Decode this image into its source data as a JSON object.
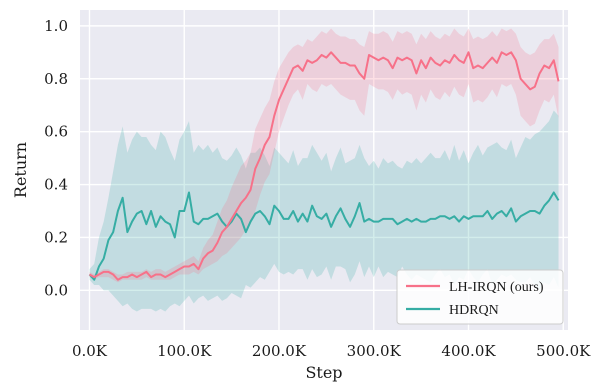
{
  "chart_data": {
    "type": "line",
    "xlabel": "Step",
    "ylabel": "Return",
    "xlim": [
      -10000,
      505000
    ],
    "ylim": [
      -0.15,
      1.06
    ],
    "x_ticks": [
      0,
      100000,
      200000,
      300000,
      400000,
      500000
    ],
    "x_tick_labels": [
      "0.0K",
      "100.0K",
      "200.0K",
      "300.0K",
      "400.0K",
      "500.0K"
    ],
    "y_ticks": [
      0.0,
      0.2,
      0.4,
      0.6,
      0.8,
      1.0
    ],
    "y_tick_labels": [
      "0.0",
      "0.2",
      "0.4",
      "0.6",
      "0.8",
      "1.0"
    ],
    "grid": true,
    "legend_position": "bottom-right",
    "x": [
      0,
      5000,
      10000,
      15000,
      20000,
      25000,
      30000,
      35000,
      40000,
      45000,
      50000,
      55000,
      60000,
      65000,
      70000,
      75000,
      80000,
      85000,
      90000,
      95000,
      100000,
      105000,
      110000,
      115000,
      120000,
      125000,
      130000,
      135000,
      140000,
      145000,
      150000,
      155000,
      160000,
      165000,
      170000,
      175000,
      180000,
      185000,
      190000,
      195000,
      200000,
      205000,
      210000,
      215000,
      220000,
      225000,
      230000,
      235000,
      240000,
      245000,
      250000,
      255000,
      260000,
      265000,
      270000,
      275000,
      280000,
      285000,
      290000,
      295000,
      300000,
      305000,
      310000,
      315000,
      320000,
      325000,
      330000,
      335000,
      340000,
      345000,
      350000,
      355000,
      360000,
      365000,
      370000,
      375000,
      380000,
      385000,
      390000,
      395000,
      400000,
      405000,
      410000,
      415000,
      420000,
      425000,
      430000,
      435000,
      440000,
      445000,
      450000,
      455000,
      460000,
      465000,
      470000,
      475000,
      480000,
      485000,
      490000,
      495000
    ],
    "series": [
      {
        "name": "LH-IRQN (ours)",
        "color": "#f77189",
        "mean": [
          0.06,
          0.05,
          0.06,
          0.07,
          0.07,
          0.06,
          0.04,
          0.05,
          0.05,
          0.06,
          0.05,
          0.06,
          0.07,
          0.05,
          0.06,
          0.06,
          0.05,
          0.06,
          0.07,
          0.08,
          0.09,
          0.09,
          0.1,
          0.08,
          0.12,
          0.14,
          0.15,
          0.18,
          0.22,
          0.24,
          0.27,
          0.3,
          0.33,
          0.35,
          0.38,
          0.46,
          0.5,
          0.55,
          0.58,
          0.66,
          0.72,
          0.76,
          0.8,
          0.84,
          0.85,
          0.83,
          0.87,
          0.86,
          0.87,
          0.89,
          0.88,
          0.9,
          0.88,
          0.86,
          0.86,
          0.85,
          0.85,
          0.82,
          0.8,
          0.89,
          0.88,
          0.87,
          0.88,
          0.87,
          0.84,
          0.88,
          0.87,
          0.88,
          0.87,
          0.82,
          0.87,
          0.84,
          0.88,
          0.86,
          0.85,
          0.87,
          0.86,
          0.89,
          0.87,
          0.86,
          0.9,
          0.84,
          0.85,
          0.84,
          0.86,
          0.88,
          0.86,
          0.9,
          0.89,
          0.9,
          0.87,
          0.8,
          0.78,
          0.76,
          0.77,
          0.82,
          0.85,
          0.84,
          0.87,
          0.79
        ],
        "lower": [
          0.05,
          0.04,
          0.05,
          0.05,
          0.05,
          0.04,
          0.03,
          0.04,
          0.04,
          0.04,
          0.04,
          0.04,
          0.05,
          0.04,
          0.04,
          0.04,
          0.04,
          0.04,
          0.05,
          0.06,
          0.06,
          0.06,
          0.07,
          0.06,
          0.08,
          0.09,
          0.1,
          0.11,
          0.13,
          0.14,
          0.16,
          0.18,
          0.2,
          0.23,
          0.25,
          0.3,
          0.36,
          0.41,
          0.44,
          0.52,
          0.6,
          0.65,
          0.7,
          0.74,
          0.76,
          0.72,
          0.78,
          0.76,
          0.75,
          0.78,
          0.77,
          0.78,
          0.76,
          0.74,
          0.73,
          0.72,
          0.72,
          0.68,
          0.66,
          0.78,
          0.77,
          0.76,
          0.76,
          0.75,
          0.72,
          0.76,
          0.74,
          0.75,
          0.74,
          0.68,
          0.74,
          0.71,
          0.76,
          0.73,
          0.72,
          0.75,
          0.73,
          0.77,
          0.74,
          0.73,
          0.78,
          0.71,
          0.72,
          0.71,
          0.73,
          0.76,
          0.73,
          0.78,
          0.77,
          0.78,
          0.74,
          0.66,
          0.64,
          0.62,
          0.63,
          0.68,
          0.72,
          0.71,
          0.74,
          0.65
        ],
        "upper": [
          0.07,
          0.06,
          0.07,
          0.08,
          0.08,
          0.07,
          0.06,
          0.06,
          0.07,
          0.07,
          0.07,
          0.07,
          0.08,
          0.07,
          0.08,
          0.08,
          0.07,
          0.08,
          0.09,
          0.1,
          0.11,
          0.12,
          0.13,
          0.11,
          0.16,
          0.19,
          0.21,
          0.26,
          0.31,
          0.34,
          0.39,
          0.43,
          0.47,
          0.49,
          0.52,
          0.61,
          0.65,
          0.69,
          0.72,
          0.79,
          0.84,
          0.87,
          0.9,
          0.92,
          0.93,
          0.92,
          0.95,
          0.94,
          0.96,
          0.98,
          0.97,
          0.99,
          0.97,
          0.96,
          0.96,
          0.95,
          0.95,
          0.93,
          0.92,
          0.98,
          0.97,
          0.97,
          0.98,
          0.97,
          0.94,
          0.98,
          0.97,
          0.98,
          0.97,
          0.93,
          0.97,
          0.95,
          0.98,
          0.96,
          0.95,
          0.97,
          0.96,
          0.99,
          0.97,
          0.96,
          0.99,
          0.95,
          0.96,
          0.95,
          0.96,
          0.98,
          0.96,
          0.99,
          0.98,
          0.99,
          0.97,
          0.92,
          0.9,
          0.89,
          0.9,
          0.93,
          0.95,
          0.95,
          0.97,
          0.92
        ]
      },
      {
        "name": "HDRQN",
        "color": "#36ada4",
        "mean": [
          0.06,
          0.04,
          0.09,
          0.12,
          0.19,
          0.22,
          0.3,
          0.35,
          0.22,
          0.26,
          0.29,
          0.3,
          0.25,
          0.3,
          0.24,
          0.28,
          0.26,
          0.25,
          0.2,
          0.3,
          0.3,
          0.37,
          0.26,
          0.25,
          0.27,
          0.27,
          0.28,
          0.29,
          0.26,
          0.24,
          0.26,
          0.29,
          0.27,
          0.22,
          0.26,
          0.29,
          0.3,
          0.28,
          0.25,
          0.32,
          0.3,
          0.27,
          0.27,
          0.3,
          0.26,
          0.29,
          0.26,
          0.32,
          0.28,
          0.27,
          0.29,
          0.24,
          0.28,
          0.31,
          0.27,
          0.24,
          0.28,
          0.33,
          0.26,
          0.27,
          0.26,
          0.26,
          0.27,
          0.27,
          0.27,
          0.25,
          0.26,
          0.27,
          0.26,
          0.27,
          0.26,
          0.26,
          0.27,
          0.27,
          0.28,
          0.28,
          0.27,
          0.28,
          0.26,
          0.28,
          0.27,
          0.28,
          0.28,
          0.28,
          0.3,
          0.27,
          0.29,
          0.3,
          0.28,
          0.31,
          0.26,
          0.28,
          0.29,
          0.3,
          0.3,
          0.29,
          0.32,
          0.34,
          0.37,
          0.34
        ],
        "lower": [
          0.04,
          0.02,
          0.02,
          0.0,
          0.0,
          -0.02,
          -0.04,
          -0.06,
          -0.05,
          -0.07,
          -0.08,
          -0.07,
          -0.07,
          -0.07,
          -0.08,
          -0.07,
          -0.08,
          -0.06,
          -0.05,
          -0.06,
          -0.04,
          -0.02,
          -0.05,
          -0.03,
          -0.02,
          -0.04,
          -0.03,
          -0.02,
          -0.04,
          -0.03,
          -0.01,
          -0.02,
          -0.03,
          0.02,
          0.01,
          0.03,
          0.05,
          0.04,
          0.07,
          0.1,
          0.07,
          0.06,
          0.07,
          0.06,
          0.08,
          0.08,
          0.04,
          0.08,
          0.05,
          0.06,
          0.09,
          0.04,
          0.09,
          0.09,
          0.08,
          0.03,
          0.06,
          0.11,
          0.05,
          0.09,
          0.05,
          0.09,
          0.05,
          0.07,
          0.06,
          0.05,
          0.09,
          0.06,
          0.04,
          0.06,
          0.05,
          0.04,
          0.03,
          0.06,
          0.08,
          0.05,
          0.06,
          0.02,
          0.05,
          0.04,
          0.08,
          0.05,
          0.03,
          0.06,
          0.08,
          0.02,
          0.04,
          0.06,
          0.05,
          0.06,
          0.04,
          0.03,
          0.03,
          0.05,
          0.02,
          0.0,
          0.03,
          0.02,
          0.05,
          0.01
        ],
        "upper": [
          0.08,
          0.1,
          0.2,
          0.26,
          0.35,
          0.45,
          0.55,
          0.62,
          0.52,
          0.57,
          0.6,
          0.58,
          0.58,
          0.55,
          0.53,
          0.6,
          0.58,
          0.53,
          0.49,
          0.57,
          0.6,
          0.64,
          0.52,
          0.55,
          0.53,
          0.55,
          0.52,
          0.54,
          0.5,
          0.49,
          0.51,
          0.54,
          0.51,
          0.46,
          0.52,
          0.52,
          0.54,
          0.51,
          0.47,
          0.54,
          0.52,
          0.5,
          0.48,
          0.53,
          0.47,
          0.5,
          0.5,
          0.55,
          0.52,
          0.49,
          0.52,
          0.45,
          0.5,
          0.54,
          0.48,
          0.49,
          0.5,
          0.55,
          0.5,
          0.47,
          0.49,
          0.46,
          0.5,
          0.48,
          0.49,
          0.47,
          0.46,
          0.49,
          0.48,
          0.5,
          0.48,
          0.5,
          0.52,
          0.5,
          0.5,
          0.53,
          0.49,
          0.55,
          0.49,
          0.53,
          0.48,
          0.52,
          0.55,
          0.51,
          0.54,
          0.55,
          0.56,
          0.54,
          0.53,
          0.57,
          0.5,
          0.54,
          0.58,
          0.57,
          0.59,
          0.6,
          0.62,
          0.64,
          0.68,
          0.66
        ]
      }
    ]
  }
}
